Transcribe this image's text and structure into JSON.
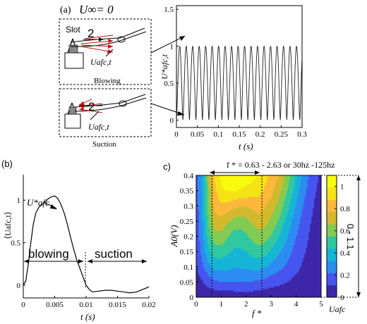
{
  "panel_a": {
    "label": "(a)",
    "title": "U∞= 0",
    "slot_label": "Slot",
    "number_label": "2",
    "velocity_label_blowing": "Uafc,t",
    "velocity_label_suction": "Uafc,t",
    "blowing_caption": "Blowing",
    "suction_caption": "Suction"
  },
  "panel_b": {
    "label": "(b)",
    "peak_label": "U*afc",
    "blowing_label": "blowing",
    "suction_label": "suction"
  },
  "panel_c": {
    "label": "c)",
    "annotation": "f * = 0.63 - 2.63 or 30hz -125hz",
    "colorbar_label": "Uafc",
    "range_label": "0 - 1.1"
  },
  "chart_data": [
    {
      "id": "a",
      "type": "line",
      "title": "",
      "xlabel": "t (s)",
      "ylabel": "U*afc,t",
      "xlim": [
        0,
        0.3
      ],
      "ylim": [
        -0.1,
        1.55
      ],
      "xticks": [
        0,
        0.05,
        0.1,
        0.15,
        0.2,
        0.25,
        0.3
      ],
      "yticks": [
        0,
        0.5,
        1,
        1.5
      ],
      "period": 0.0155,
      "peak": 1.0,
      "trough": 0.0
    },
    {
      "id": "b",
      "type": "line",
      "xlabel": "t (s)",
      "ylabel": "⟨Uafc,t⟩",
      "xlim": [
        0,
        0.02
      ],
      "ylim": [
        -0.15,
        1.3
      ],
      "xticks": [
        0,
        0.005,
        0.01,
        0.015,
        0.02
      ],
      "yticks": [
        0,
        0.5,
        1
      ],
      "series": [
        {
          "x": [
            0,
            0.0004,
            0.0008,
            0.0012,
            0.0016,
            0.002,
            0.0025,
            0.003,
            0.0035,
            0.004,
            0.0045,
            0.005,
            0.0055,
            0.006,
            0.0065,
            0.007,
            0.0075,
            0.008,
            0.0085,
            0.009,
            0.0095,
            0.01,
            0.0105,
            0.011,
            0.012,
            0.013,
            0.014,
            0.015,
            0.016,
            0.017,
            0.018,
            0.019,
            0.02
          ],
          "y": [
            0.0,
            0.05,
            0.25,
            0.5,
            0.72,
            0.85,
            0.92,
            0.95,
            0.98,
            1.02,
            1.04,
            1.05,
            1.02,
            0.95,
            0.85,
            0.72,
            0.57,
            0.43,
            0.3,
            0.2,
            0.1,
            0.0,
            -0.05,
            -0.08,
            -0.07,
            -0.06,
            -0.06,
            -0.07,
            -0.08,
            -0.09,
            -0.08,
            -0.05,
            -0.02
          ]
        }
      ]
    },
    {
      "id": "c",
      "type": "heatmap",
      "xlabel": "f *",
      "ylabel": "A0(V)",
      "xlim": [
        0,
        5
      ],
      "ylim": [
        0,
        0.4
      ],
      "xticks": [
        0,
        1,
        2,
        3,
        4,
        5
      ],
      "yticks": [
        0,
        0.05,
        0.1,
        0.15,
        0.2,
        0.25,
        0.3,
        0.35,
        0.4
      ],
      "colorbar_ticks": [
        0,
        0.2,
        0.4,
        0.6,
        0.8,
        1
      ],
      "x": [
        0,
        0.25,
        0.5,
        0.75,
        1,
        1.25,
        1.5,
        1.75,
        2,
        2.25,
        2.5,
        2.75,
        3,
        3.25,
        3.5,
        3.75,
        4,
        4.25,
        4.5,
        4.75,
        5
      ],
      "y": [
        0,
        0.05,
        0.1,
        0.15,
        0.2,
        0.25,
        0.3,
        0.35,
        0.4
      ],
      "z": [
        [
          0.02,
          0.02,
          0.02,
          0.02,
          0.03,
          0.03,
          0.03,
          0.04,
          0.04,
          0.04,
          0.03,
          0.03,
          0.02,
          0.02,
          0.02,
          0.01,
          0.01,
          0.01,
          0.01,
          0.01,
          0.01
        ],
        [
          0.06,
          0.1,
          0.16,
          0.2,
          0.22,
          0.22,
          0.22,
          0.22,
          0.22,
          0.21,
          0.2,
          0.18,
          0.16,
          0.14,
          0.12,
          0.1,
          0.08,
          0.06,
          0.05,
          0.04,
          0.03
        ],
        [
          0.1,
          0.2,
          0.3,
          0.36,
          0.37,
          0.36,
          0.34,
          0.34,
          0.35,
          0.36,
          0.36,
          0.34,
          0.3,
          0.26,
          0.22,
          0.18,
          0.14,
          0.1,
          0.07,
          0.05,
          0.04
        ],
        [
          0.12,
          0.26,
          0.42,
          0.5,
          0.5,
          0.46,
          0.42,
          0.42,
          0.44,
          0.48,
          0.5,
          0.48,
          0.42,
          0.36,
          0.3,
          0.24,
          0.18,
          0.13,
          0.09,
          0.06,
          0.04
        ],
        [
          0.14,
          0.3,
          0.5,
          0.62,
          0.62,
          0.56,
          0.5,
          0.5,
          0.53,
          0.58,
          0.62,
          0.6,
          0.54,
          0.46,
          0.38,
          0.3,
          0.22,
          0.16,
          0.11,
          0.07,
          0.05
        ],
        [
          0.15,
          0.33,
          0.56,
          0.72,
          0.74,
          0.68,
          0.62,
          0.6,
          0.62,
          0.68,
          0.72,
          0.7,
          0.64,
          0.56,
          0.46,
          0.36,
          0.27,
          0.19,
          0.13,
          0.08,
          0.06
        ],
        [
          0.16,
          0.35,
          0.6,
          0.8,
          0.86,
          0.84,
          0.8,
          0.78,
          0.78,
          0.8,
          0.82,
          0.78,
          0.72,
          0.64,
          0.54,
          0.43,
          0.32,
          0.23,
          0.16,
          0.1,
          0.07
        ],
        [
          0.16,
          0.36,
          0.63,
          0.86,
          0.96,
          1.0,
          1.0,
          0.98,
          0.96,
          0.94,
          0.92,
          0.86,
          0.8,
          0.72,
          0.62,
          0.5,
          0.38,
          0.27,
          0.19,
          0.12,
          0.08
        ],
        [
          0.16,
          0.37,
          0.65,
          0.9,
          1.02,
          1.08,
          1.1,
          1.08,
          1.05,
          1.02,
          0.98,
          0.92,
          0.86,
          0.78,
          0.68,
          0.56,
          0.43,
          0.31,
          0.22,
          0.14,
          0.09
        ]
      ],
      "vlines": [
        0.63,
        2.63
      ],
      "colorscale": [
        "#3e26a8",
        "#4655f0",
        "#2d8cf2",
        "#16b5d6",
        "#31c8a0",
        "#83cb53",
        "#d2b92d",
        "#fbb83a",
        "#f4e315",
        "#f9fb0e"
      ]
    }
  ]
}
